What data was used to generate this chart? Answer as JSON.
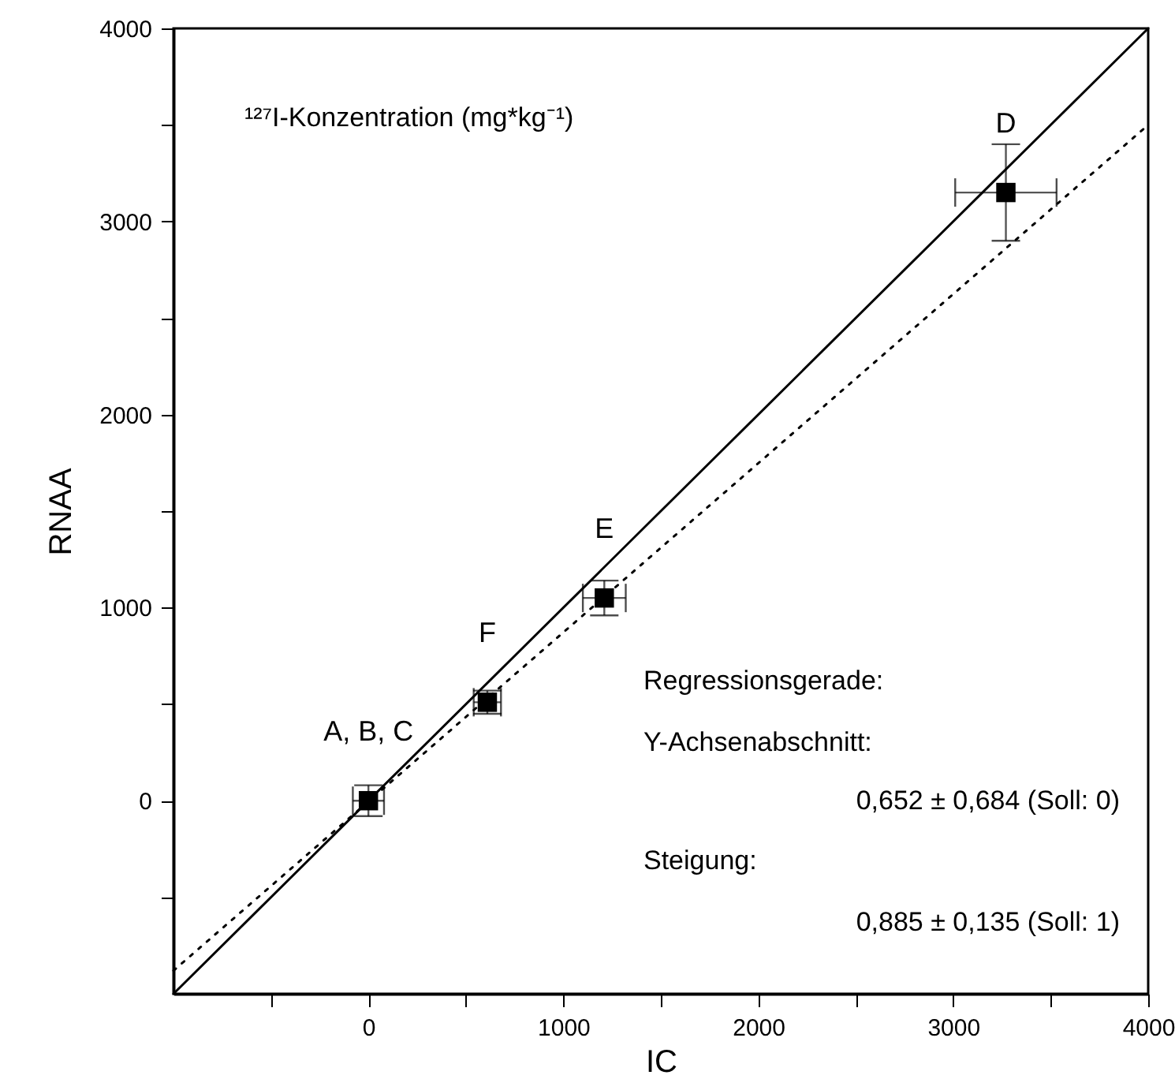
{
  "chart_data": {
    "type": "scatter",
    "xlabel": "IC",
    "ylabel": "RNAA",
    "series": [
      {
        "color": "#000000",
        "x": [
          0,
          610,
          1210,
          3270
        ],
        "values": [
          0,
          510,
          1050,
          3150
        ],
        "errors": [
          80,
          60,
          90,
          250
        ],
        "xerrors": [
          80,
          70,
          110,
          260
        ],
        "marker": "square"
      },
      {
        "type": "line",
        "color": "#000000",
        "x": [
          -1000,
          4000
        ],
        "values": [
          -1000,
          4000
        ],
        "line_style": "solid",
        "marker": "none"
      },
      {
        "type": "line",
        "color": "#000000",
        "x": [
          -1000,
          4000
        ],
        "values": [
          -880,
          3500
        ],
        "line_style": "dotted",
        "marker": "none"
      }
    ],
    "xlim": [
      -1000,
      4000
    ],
    "ylim": [
      -1000,
      4000
    ],
    "xticks": [
      {
        "value": -500,
        "label": null
      },
      0,
      {
        "value": 500,
        "label": null
      },
      1000,
      {
        "value": 1500,
        "label": null
      },
      2000,
      {
        "value": 2500,
        "label": null
      },
      3000,
      {
        "value": 3500,
        "label": null
      },
      4000
    ],
    "yticks": [
      {
        "value": -500,
        "label": null
      },
      0,
      {
        "value": 500,
        "label": null
      },
      1000,
      {
        "value": 1500,
        "label": null
      },
      2000,
      {
        "value": 2500,
        "label": null
      },
      3000,
      {
        "value": 3500,
        "label": null
      },
      4000
    ],
    "grid": false,
    "annotations": [
      "¹²⁷I-Konzentration (mg*kg⁻¹)",
      {
        "text": "A, B, C",
        "x": 0,
        "y": 0
      },
      {
        "text": "F",
        "x": 610,
        "y": 510
      },
      {
        "text": "E",
        "x": 1210,
        "y": 1050
      },
      {
        "text": "D",
        "x": 3270,
        "y": 3150
      },
      "Regressionsgerade:",
      "Y-Achsenabschnitt:",
      "0,652 ± 0,684 (Soll: 0)",
      "Steigung:",
      "0,885 ± 0,135 (Soll: 1)"
    ]
  }
}
